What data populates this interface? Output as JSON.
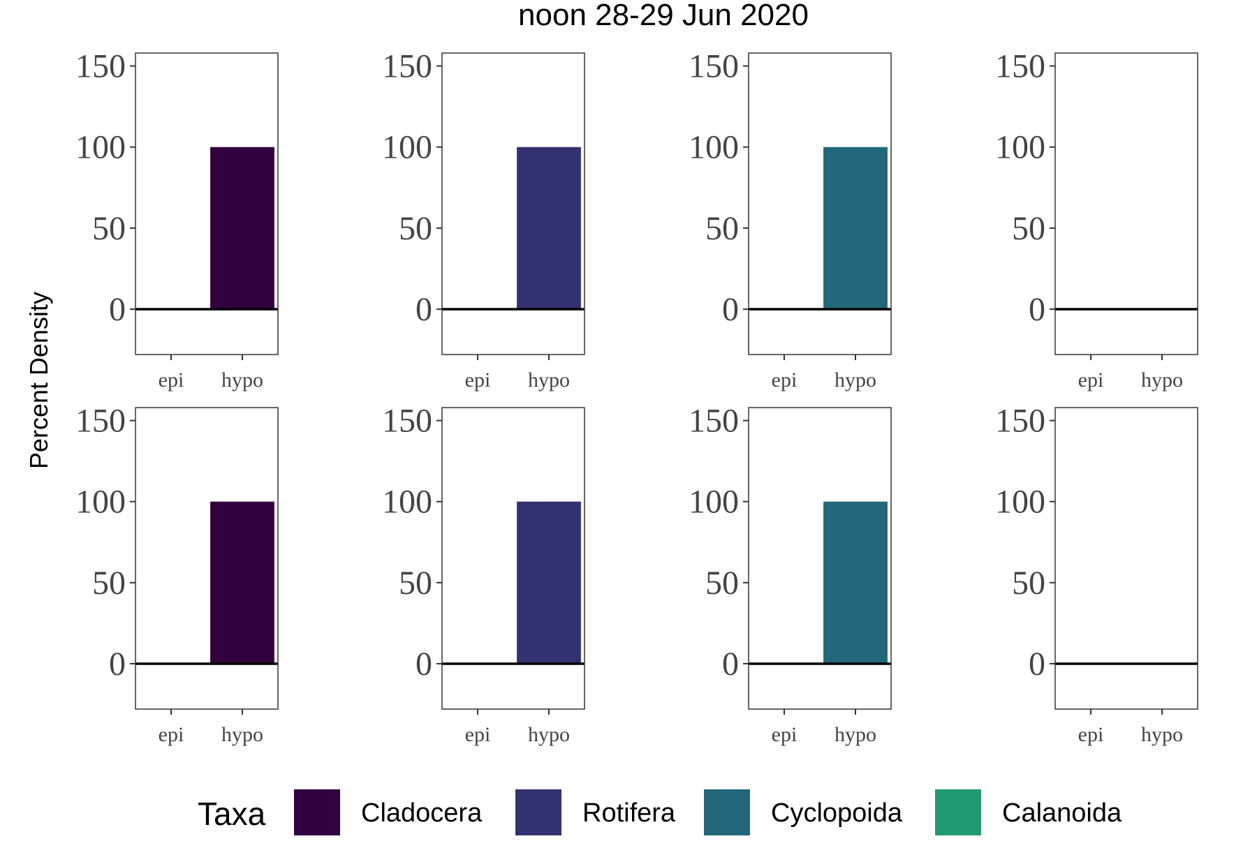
{
  "title": "noon 28-29 Jun 2020",
  "ylabel": "Percent Density",
  "legend": {
    "title": "Taxa",
    "items": [
      {
        "label": "Cladocera",
        "color": "#33003F"
      },
      {
        "label": "Rotifera",
        "color": "#323270"
      },
      {
        "label": "Cyclopoida",
        "color": "#22677A"
      },
      {
        "label": "Calanoida",
        "color": "#219A74"
      }
    ]
  },
  "chart_data": {
    "type": "bar",
    "layout": "facet grid, 2 rows x 4 columns",
    "categories": [
      "epi",
      "hypo"
    ],
    "ylim": [
      -28,
      158
    ],
    "yticks": [
      0,
      50,
      100,
      150
    ],
    "grid": false,
    "legend_position": "bottom",
    "panels": [
      {
        "series": "Cladocera",
        "color": "#33003F",
        "values": [
          0,
          100
        ]
      },
      {
        "series": "Rotifera",
        "color": "#323270",
        "values": [
          0,
          100
        ]
      },
      {
        "series": "Cyclopoida",
        "color": "#22677A",
        "values": [
          0,
          100
        ]
      },
      {
        "series": "Calanoida",
        "color": "#219A74",
        "values": [
          0,
          0
        ]
      },
      {
        "series": "Cladocera",
        "color": "#33003F",
        "values": [
          0,
          100
        ]
      },
      {
        "series": "Rotifera",
        "color": "#323270",
        "values": [
          0,
          100
        ]
      },
      {
        "series": "Cyclopoida",
        "color": "#22677A",
        "values": [
          0,
          100
        ]
      },
      {
        "series": "Calanoida",
        "color": "#219A74",
        "values": [
          0,
          0
        ]
      }
    ]
  }
}
